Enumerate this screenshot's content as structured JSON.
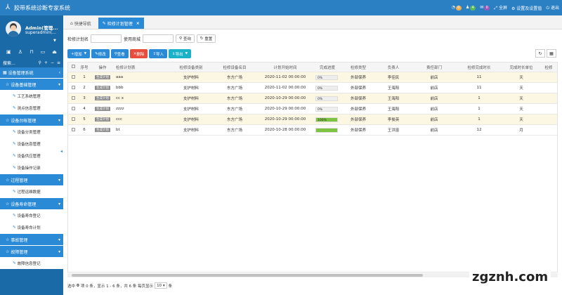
{
  "app": {
    "title": "胶带系统诊断专家系统"
  },
  "header": {
    "badges": [
      {
        "count": "0"
      },
      {
        "count": "4"
      },
      {
        "count": "0"
      }
    ],
    "fullscreen": "全屏",
    "settings": "设置及设置值",
    "logout": "退出"
  },
  "user": {
    "name": "Admin(管理...",
    "role": "superadmin(..."
  },
  "sidebar": {
    "search_label": "搜索...",
    "root": "设备管理系统",
    "groups": [
      {
        "label": "设备基础管理",
        "items": [
          "工艺系统管理",
          "测点信息管理"
        ]
      },
      {
        "label": "设备台帐管理",
        "items": [
          "设备分类管理",
          "设备信息管理",
          "设备供应管理",
          "设备操作记录"
        ]
      },
      {
        "label": "过程管理",
        "items": [
          "过程运维数据"
        ]
      },
      {
        "label": "设备寿命管理",
        "items": [
          "设备寿命登记",
          "设备寿命计划"
        ]
      },
      {
        "label": "事故管理",
        "items": []
      },
      {
        "label": "故障管理",
        "items": [
          "故障信息登记"
        ]
      }
    ]
  },
  "tabs": [
    {
      "label": "快捷导航",
      "active": false
    },
    {
      "label": "检修计划管理",
      "active": true
    }
  ],
  "query": {
    "label1": "检修计划名",
    "label2": "使用商城",
    "search": "查询",
    "reset": "重置"
  },
  "toolbar": {
    "add": "增加",
    "edit": "修改",
    "view": "查看",
    "delete": "删除",
    "import": "导入",
    "export": "导出"
  },
  "table": {
    "columns": [
      "",
      "序号",
      "操作",
      "检修计划表",
      "检修设备类别",
      "检修设备名目",
      "计划开始时间",
      "完成进度",
      "检修类型",
      "负责人",
      "责任部门",
      "检修完成时长",
      "完成时长单位",
      "检修"
    ],
    "gen_label": "生成计划",
    "rows": [
      {
        "no": "1",
        "name": "aaa",
        "cat": "支护材料",
        "item": "东方广场",
        "start": "2020-11-02 00:00:00",
        "progress": "0%",
        "pct": 0,
        "type": "外部保养",
        "owner": "李佳民",
        "dept": "前店",
        "dur": "11",
        "unit": "天"
      },
      {
        "no": "2",
        "name": "bbb",
        "cat": "支护材料",
        "item": "东方广场",
        "start": "2020-11-02 00:00:00",
        "progress": "0%",
        "pct": 0,
        "type": "外部保养",
        "owner": "王海阳",
        "dept": "前店",
        "dur": "11",
        "unit": "天"
      },
      {
        "no": "3",
        "name": "cc x",
        "cat": "支护材料",
        "item": "东方广场",
        "start": "2020-10-29 00:00:00",
        "progress": "0%",
        "pct": 0,
        "type": "外部保养",
        "owner": "王海阳",
        "dept": "前店",
        "dur": "1",
        "unit": "天"
      },
      {
        "no": "4",
        "name": "zzzz",
        "cat": "支护材料",
        "item": "东方广场",
        "start": "2020-10-29 00:00:00",
        "progress": "0%",
        "pct": 0,
        "type": "外部保养",
        "owner": "王海阳",
        "dept": "前店",
        "dur": "1",
        "unit": "天"
      },
      {
        "no": "5",
        "name": "ccc",
        "cat": "支护材料",
        "item": "东方广场",
        "start": "2020-10-29 00:00:00",
        "progress": "100%",
        "pct": 100,
        "type": "外部保养",
        "owner": "李俊英",
        "dept": "前店",
        "dur": "1",
        "unit": "天"
      },
      {
        "no": "6",
        "name": "bt",
        "cat": "支护材料",
        "item": "东方广场",
        "start": "2020-10-28 00:00:00",
        "progress": "",
        "pct": 100,
        "type": "外部保养",
        "owner": "王洪宙",
        "dept": "前店",
        "dur": "12",
        "unit": "月"
      }
    ]
  },
  "pager": {
    "text1": "选中",
    "sel": "0",
    "text2": "项 0 条，显示 1 - 6 条，共 6 条 每页显示",
    "size": "10",
    "text3": "条"
  },
  "watermark": "zgznh.com"
}
